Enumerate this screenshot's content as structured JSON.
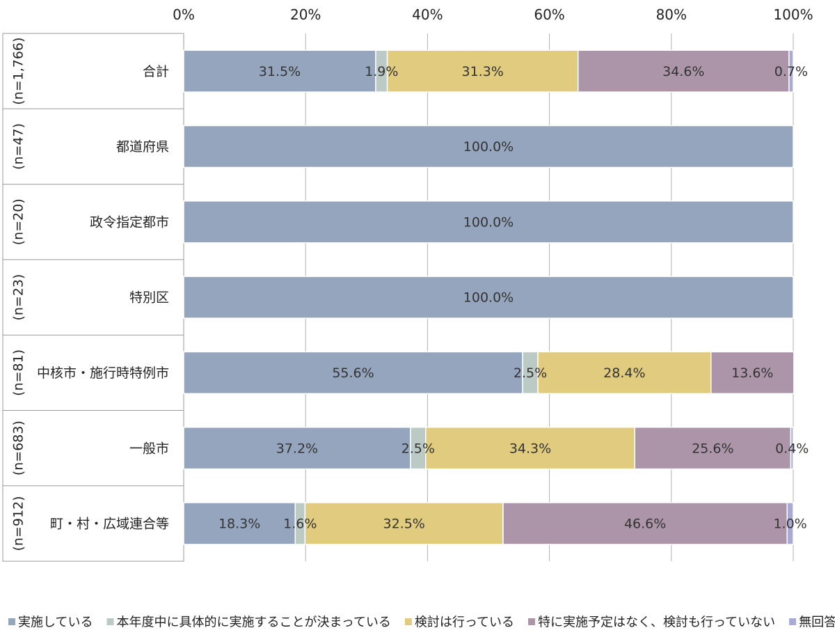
{
  "chart_data": {
    "type": "bar",
    "orientation": "horizontal",
    "stacked": true,
    "x_ticks": [
      "0%",
      "20%",
      "40%",
      "60%",
      "80%",
      "100%"
    ],
    "xlim": [
      0,
      100
    ],
    "grid": true,
    "legend_position": "bottom",
    "categories": [
      {
        "label": "合計",
        "n": "(n=1,766)"
      },
      {
        "label": "都道府県",
        "n": "(n=47)"
      },
      {
        "label": "政令指定都市",
        "n": "(n=20)"
      },
      {
        "label": "特別区",
        "n": "(n=23)"
      },
      {
        "label": "中核市・施行時特例市",
        "n": "(n=81)"
      },
      {
        "label": "一般市",
        "n": "(n=683)"
      },
      {
        "label": "町・村・広域連合等",
        "n": "(n=912)"
      }
    ],
    "series": [
      {
        "name": "実施している",
        "color": "#94a5bd",
        "values": [
          31.5,
          100.0,
          100.0,
          100.0,
          55.6,
          37.2,
          18.3
        ],
        "labels": [
          "31.5%",
          "100.0%",
          "100.0%",
          "100.0%",
          "55.6%",
          "37.2%",
          "18.3%"
        ]
      },
      {
        "name": "本年度中に具体的に実施することが決まっている",
        "color": "#bccac6",
        "values": [
          1.9,
          0,
          0,
          0,
          2.5,
          2.5,
          1.6
        ],
        "labels": [
          "1.9%",
          "",
          "",
          "",
          "2.5%",
          "2.5%",
          "1.6%"
        ]
      },
      {
        "name": "検討は行っている",
        "color": "#e0cb7e",
        "values": [
          31.3,
          0,
          0,
          0,
          28.4,
          34.3,
          32.5
        ],
        "labels": [
          "31.3%",
          "",
          "",
          "",
          "28.4%",
          "34.3%",
          "32.5%"
        ]
      },
      {
        "name": "特に実施予定はなく、検討も行っていない",
        "color": "#ac95a9",
        "values": [
          34.6,
          0,
          0,
          0,
          13.6,
          25.6,
          46.6
        ],
        "labels": [
          "34.6%",
          "",
          "",
          "",
          "13.6%",
          "25.6%",
          "46.6%"
        ]
      },
      {
        "name": "無回答",
        "color": "#a9abd6",
        "values": [
          0.7,
          0,
          0,
          0,
          0,
          0.4,
          1.0
        ],
        "labels": [
          "0.7%",
          "",
          "",
          "",
          "",
          "0.4%",
          "1.0%"
        ]
      }
    ]
  }
}
